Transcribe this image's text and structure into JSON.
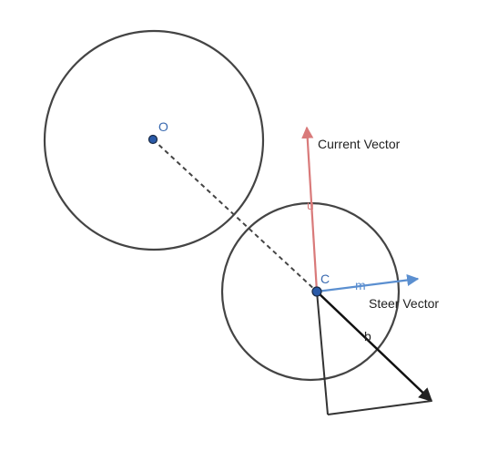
{
  "labels": {
    "point_o": "O",
    "point_c": "C",
    "vector_u": "u",
    "vector_m": "m",
    "vector_b": "b",
    "current_vector": "Current Vector",
    "steer_vector": "Steer Vector"
  },
  "colors": {
    "circle": "#444444",
    "dot_fill": "#2a5aa8",
    "dot_stroke": "#1a2a44",
    "point_label": "#3a6ab0",
    "current_vector": "#d97a7a",
    "steer_vector": "#5b8fd0",
    "b_vector": "#111111",
    "text": "#222222"
  }
}
